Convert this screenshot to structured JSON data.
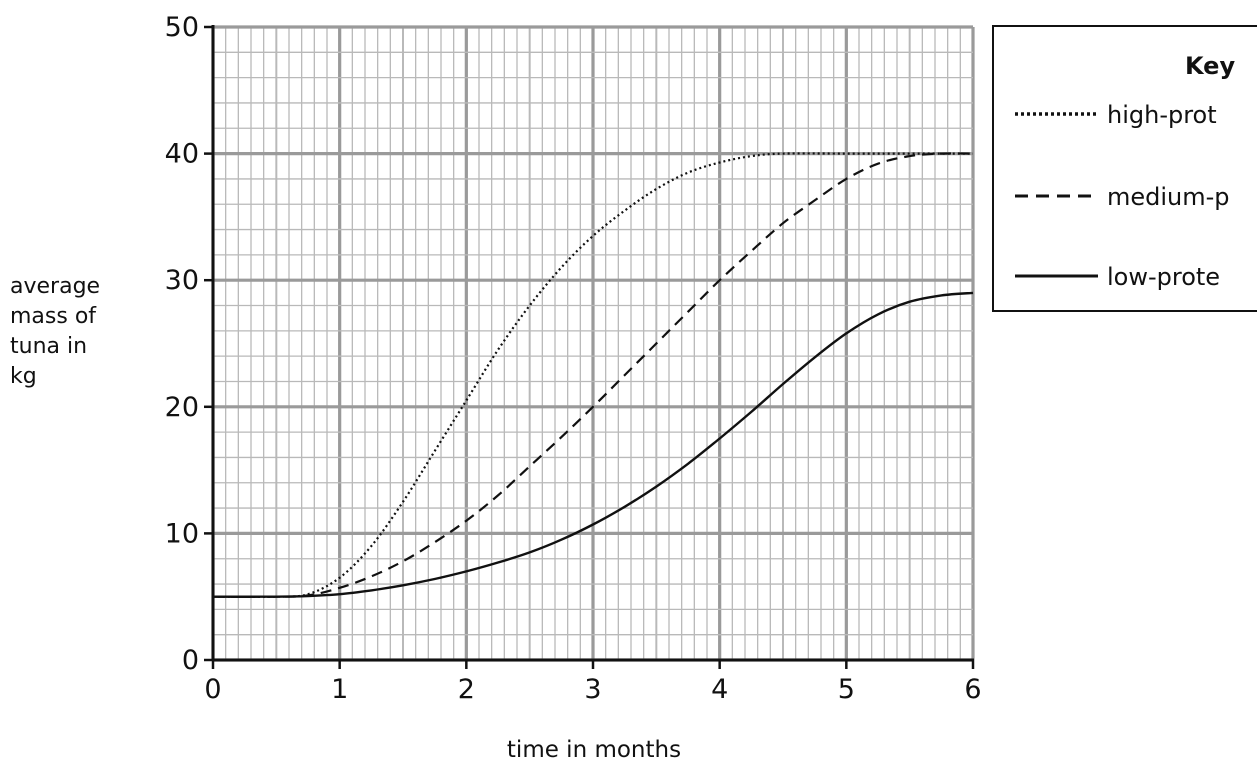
{
  "chart_data": {
    "type": "line",
    "title": "",
    "xlabel": "time in months",
    "ylabel": [
      "average",
      "mass of",
      "tuna in",
      "kg"
    ],
    "xlim": [
      0,
      6
    ],
    "ylim": [
      0,
      50
    ],
    "x_ticks": [
      0,
      1,
      2,
      3,
      4,
      5,
      6
    ],
    "y_ticks": [
      0,
      10,
      20,
      30,
      40,
      50
    ],
    "grid": true,
    "legend_title": "Key",
    "legend_position": "top-right",
    "series": [
      {
        "name": "high-prot",
        "line_style": "dotted",
        "x": [
          0,
          0.5,
          0.75,
          1,
          1.25,
          1.5,
          1.75,
          2,
          2.25,
          2.5,
          2.75,
          3,
          3.25,
          3.5,
          3.75,
          4,
          4.25,
          4.5,
          5,
          5.5,
          6
        ],
        "values": [
          5,
          5,
          5.2,
          6.5,
          9,
          12.5,
          16.5,
          20.5,
          24.5,
          28,
          31,
          33.5,
          35.5,
          37.2,
          38.5,
          39.3,
          39.8,
          40,
          40,
          40,
          40
        ]
      },
      {
        "name": "medium-p",
        "line_style": "dashed",
        "x": [
          0,
          0.5,
          0.75,
          1,
          1.25,
          1.5,
          1.75,
          2,
          2.25,
          2.5,
          2.75,
          3,
          3.25,
          3.5,
          3.75,
          4,
          4.25,
          4.5,
          4.75,
          5,
          5.25,
          5.5,
          5.75,
          6
        ],
        "values": [
          5,
          5,
          5.1,
          5.7,
          6.6,
          7.8,
          9.3,
          11,
          13,
          15.3,
          17.6,
          20,
          22.5,
          25,
          27.5,
          30,
          32.3,
          34.5,
          36.3,
          38,
          39.2,
          39.8,
          40,
          40
        ]
      },
      {
        "name": "low-prote",
        "line_style": "solid",
        "x": [
          0,
          0.5,
          0.75,
          1,
          1.25,
          1.5,
          1.75,
          2,
          2.25,
          2.5,
          2.75,
          3,
          3.25,
          3.5,
          3.75,
          4,
          4.25,
          4.5,
          4.75,
          5,
          5.25,
          5.5,
          5.75,
          6
        ],
        "values": [
          5,
          5,
          5.05,
          5.2,
          5.5,
          5.9,
          6.4,
          7,
          7.7,
          8.5,
          9.5,
          10.7,
          12.1,
          13.7,
          15.5,
          17.5,
          19.6,
          21.8,
          23.9,
          25.8,
          27.3,
          28.3,
          28.8,
          29
        ]
      }
    ]
  }
}
